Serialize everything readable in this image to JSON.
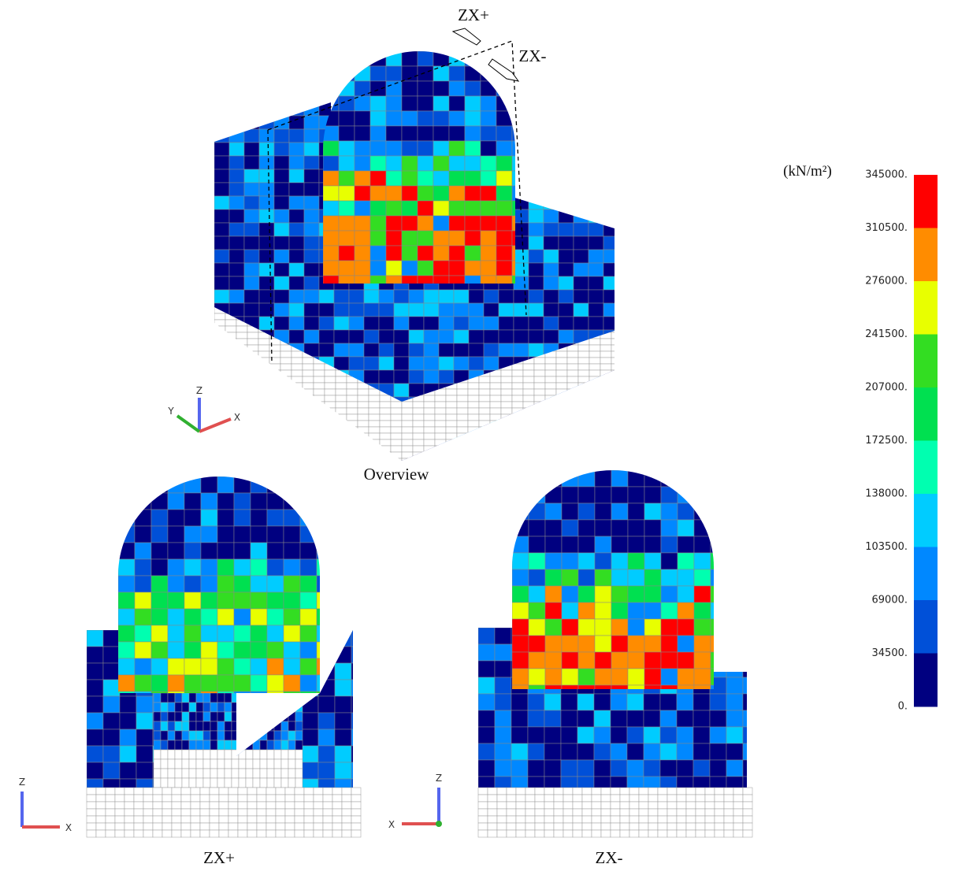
{
  "figure": {
    "overview": {
      "caption": "Overview",
      "axes": [
        "Z",
        "Y",
        "X"
      ],
      "cut_labels": [
        "ZX+",
        "ZX-"
      ]
    },
    "zx_plus": {
      "caption": "ZX+",
      "axes": [
        "Z",
        "X"
      ]
    },
    "zx_minus": {
      "caption": "ZX-",
      "axes": [
        "Z",
        "X"
      ]
    },
    "colorbar": {
      "unit": "(kN/m²)",
      "ticks": [
        "345000.",
        "310500.",
        "276000.",
        "241500.",
        "207000.",
        "172500.",
        "138000.",
        "103500.",
        "69000.",
        "34500.",
        "0."
      ],
      "colors": [
        "#ff0000",
        "#ff8c00",
        "#e8ff00",
        "#33dd22",
        "#00e050",
        "#00ffb0",
        "#00ccff",
        "#0088ff",
        "#0050d8",
        "#000080"
      ]
    }
  }
}
